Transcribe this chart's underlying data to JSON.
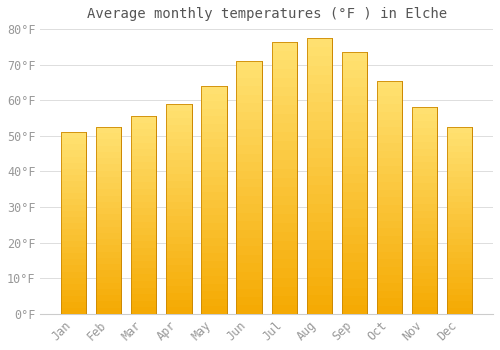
{
  "title": "Average monthly temperatures (°F ) in Elche",
  "months": [
    "Jan",
    "Feb",
    "Mar",
    "Apr",
    "May",
    "Jun",
    "Jul",
    "Aug",
    "Sep",
    "Oct",
    "Nov",
    "Dec"
  ],
  "values": [
    51,
    52.5,
    55.5,
    59,
    64,
    71,
    76.5,
    77.5,
    73.5,
    65.5,
    58,
    52.5
  ],
  "bar_color_top": "#FFE070",
  "bar_color_bottom": "#F5A800",
  "bar_edge_color": "#CC8800",
  "background_color": "#FFFFFF",
  "plot_bg_color": "#FFFFFF",
  "grid_color": "#DDDDDD",
  "text_color": "#999999",
  "ylim": [
    0,
    80
  ],
  "ytick_values": [
    0,
    10,
    20,
    30,
    40,
    50,
    60,
    70,
    80
  ],
  "title_fontsize": 10,
  "tick_fontsize": 8.5
}
